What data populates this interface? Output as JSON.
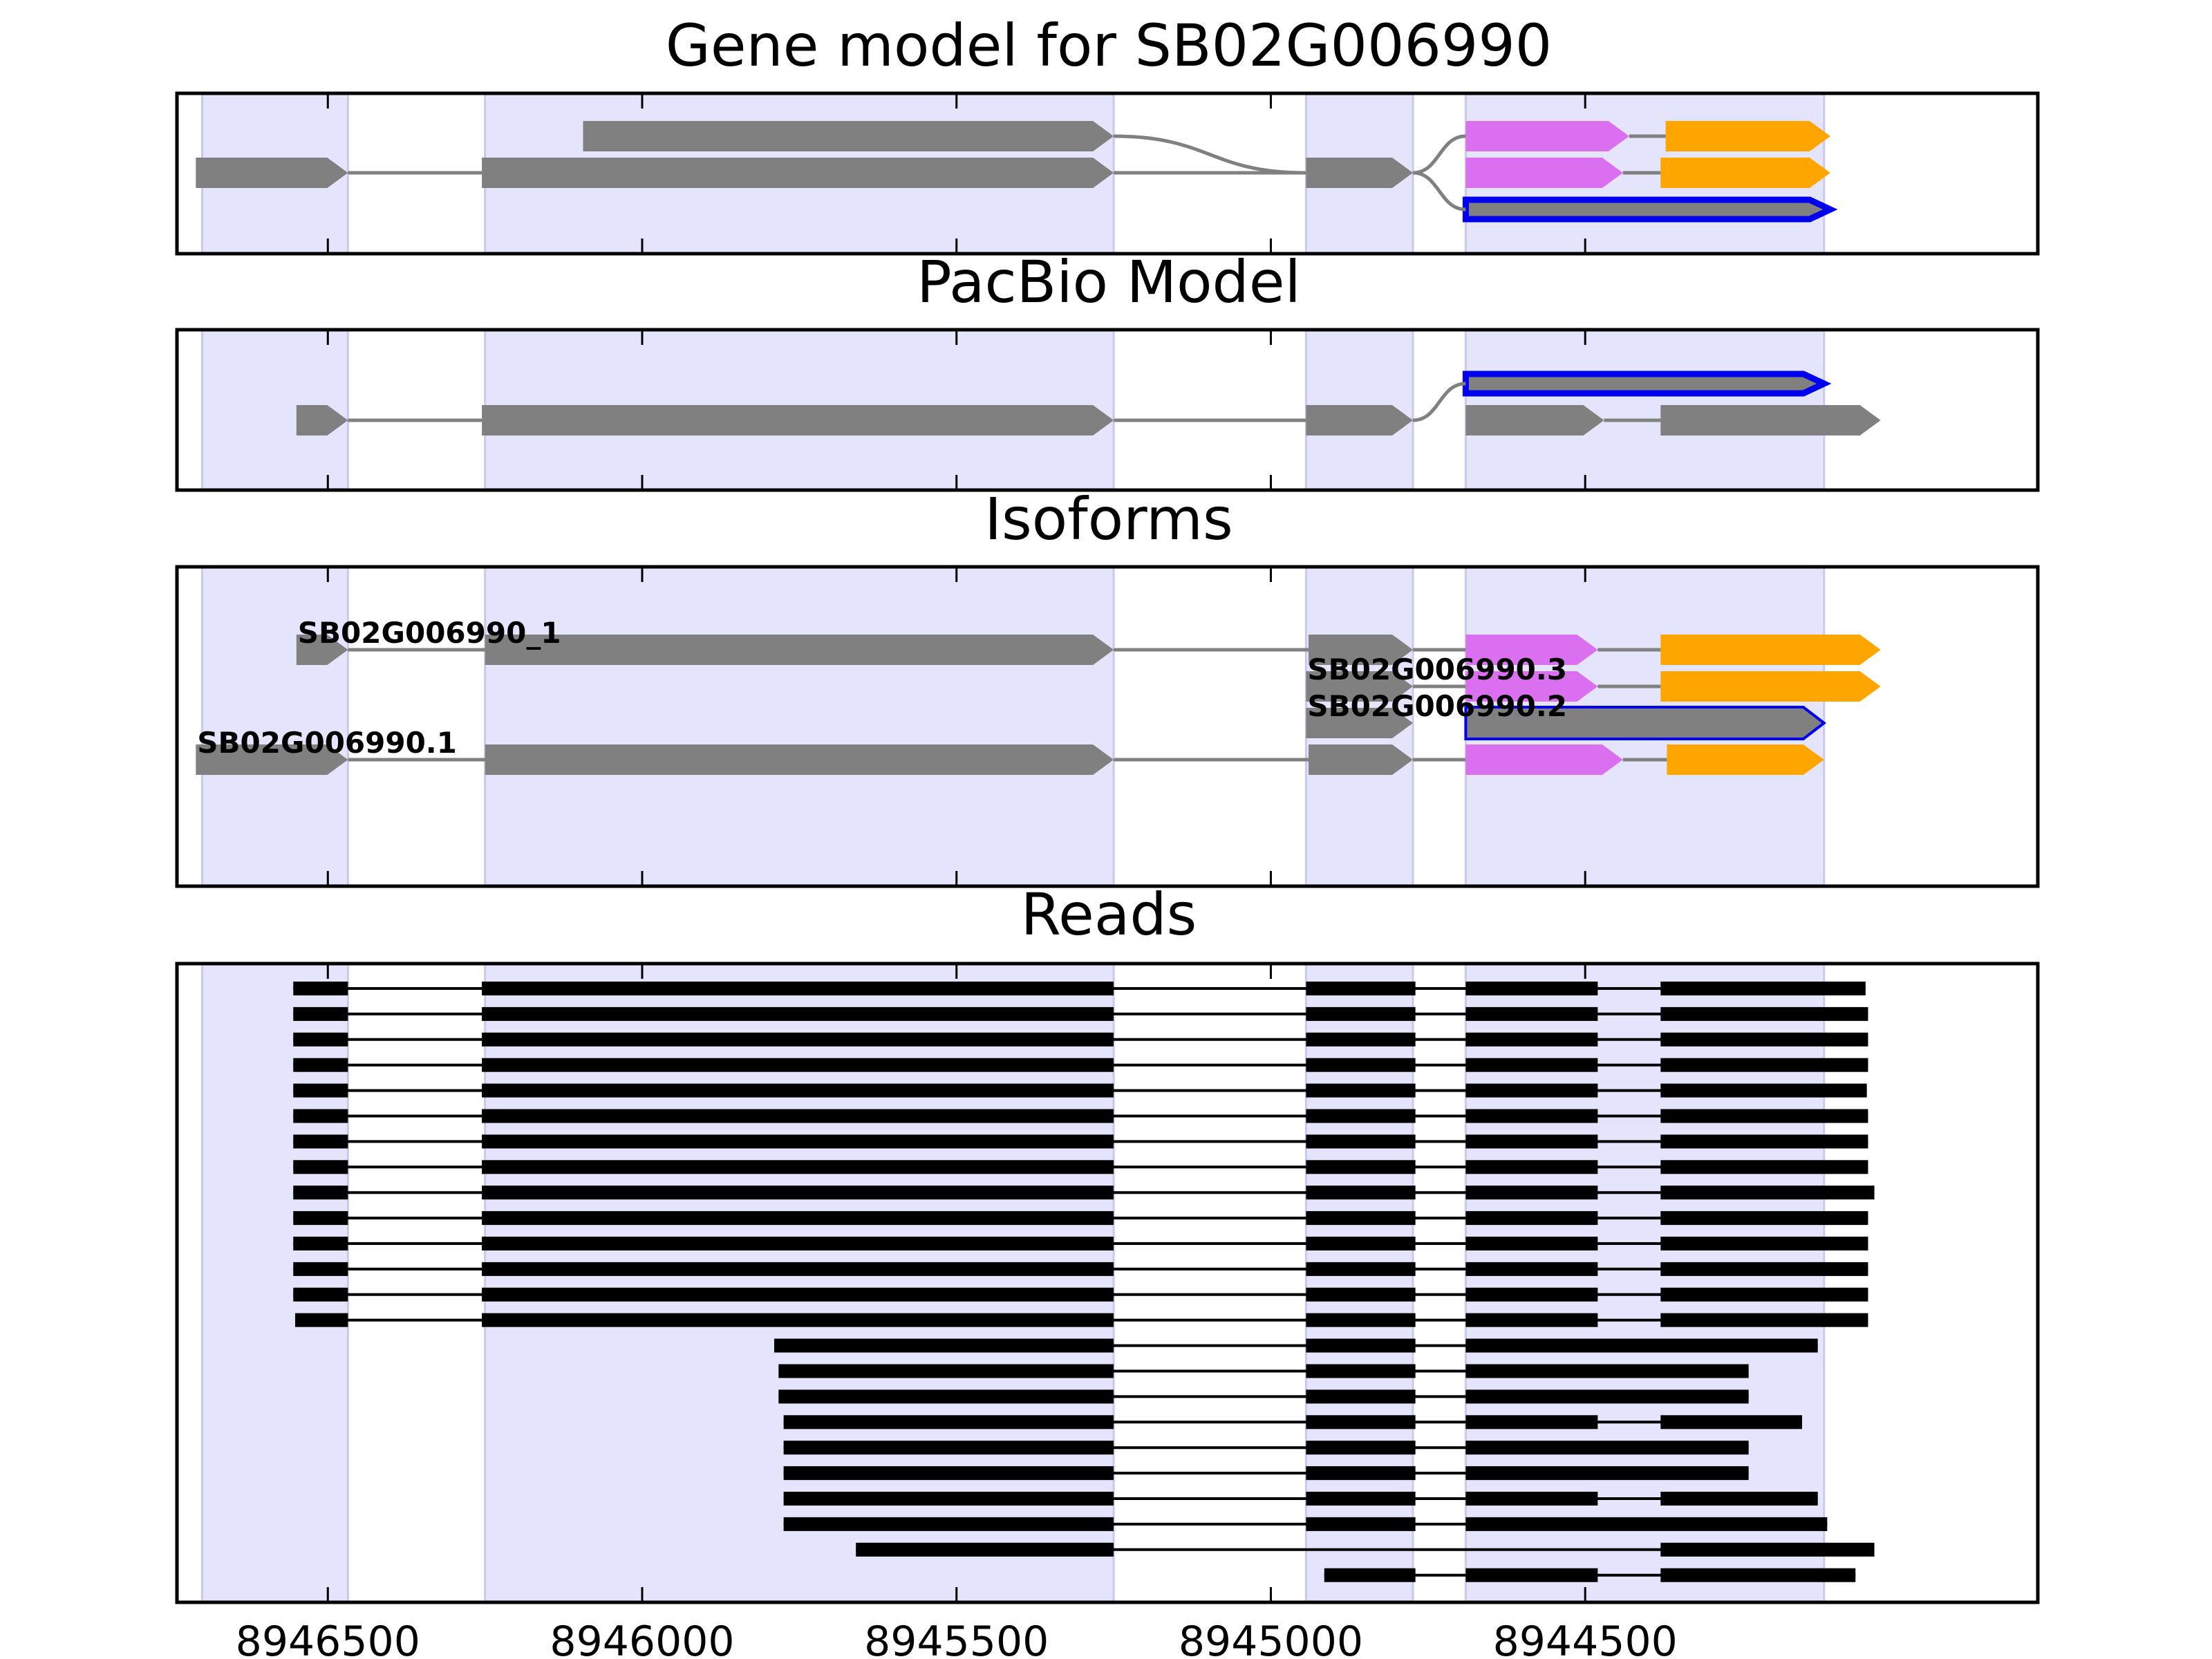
{
  "chart_data": [
    {
      "type": "gene-track",
      "title": "Gene model for SB02G006990",
      "shaded_regions": [
        [
          8946700,
          8946468
        ],
        [
          8946250,
          8945250
        ],
        [
          8944944,
          8944774
        ],
        [
          8944690,
          8944120
        ]
      ],
      "junction_curves": [
        {
          "from": [
            8945250,
            1
          ],
          "to": [
            8944944,
            2
          ]
        },
        {
          "from": [
            8944774,
            2
          ],
          "to": [
            8944690,
            1
          ]
        },
        {
          "from": [
            8944774,
            2
          ],
          "to": [
            8944690,
            3
          ]
        }
      ],
      "rows": [
        {
          "row": 1,
          "parts": [
            {
              "start": 8946094,
              "end": 8945250,
              "color": "#808080"
            },
            {
              "start": 8944690,
              "end": 8944430,
              "color": "#DA70F0"
            },
            {
              "start": 8944372,
              "end": 8944110,
              "color": "#FFA500"
            }
          ],
          "introns": [
            [
              8944430,
              8944372
            ]
          ]
        },
        {
          "row": 2,
          "parts": [
            {
              "start": 8946710,
              "end": 8946468,
              "color": "#808080"
            },
            {
              "start": 8946255,
              "end": 8945250,
              "color": "#808080"
            },
            {
              "start": 8944944,
              "end": 8944774,
              "color": "#808080"
            },
            {
              "start": 8944690,
              "end": 8944440,
              "color": "#DA70F0"
            },
            {
              "start": 8944380,
              "end": 8944110,
              "color": "#FFA500"
            }
          ],
          "introns": [
            [
              8946468,
              8946255
            ],
            [
              8945250,
              8944944
            ],
            [
              8944440,
              8944380
            ]
          ]
        },
        {
          "row": 3,
          "parts": [
            {
              "start": 8944690,
              "end": 8944110,
              "color": "#808080",
              "outline": "#0000EE",
              "thick": true
            }
          ],
          "introns": []
        }
      ]
    },
    {
      "type": "gene-track",
      "title": "PacBio Model",
      "shaded_regions": [
        [
          8946700,
          8946468
        ],
        [
          8946250,
          8945250
        ],
        [
          8944944,
          8944774
        ],
        [
          8944690,
          8944120
        ]
      ],
      "junction_curves": [
        {
          "from": [
            8944774,
            2
          ],
          "to": [
            8944690,
            1
          ]
        }
      ],
      "rows": [
        {
          "row": 1,
          "parts": [
            {
              "start": 8944690,
              "end": 8944120,
              "color": "#808080",
              "outline": "#0000EE",
              "thick": true
            }
          ],
          "introns": []
        },
        {
          "row": 2,
          "parts": [
            {
              "start": 8946550,
              "end": 8946468,
              "color": "#808080"
            },
            {
              "start": 8946255,
              "end": 8945250,
              "color": "#808080"
            },
            {
              "start": 8944944,
              "end": 8944774,
              "color": "#808080"
            },
            {
              "start": 8944690,
              "end": 8944470,
              "color": "#808080"
            },
            {
              "start": 8944380,
              "end": 8944030,
              "color": "#808080"
            }
          ],
          "introns": [
            [
              8946468,
              8946255
            ],
            [
              8945250,
              8944944
            ],
            [
              8944470,
              8944380
            ]
          ]
        }
      ]
    },
    {
      "type": "gene-track",
      "title": "Isoforms",
      "shaded_regions": [
        [
          8946700,
          8946468
        ],
        [
          8946250,
          8945250
        ],
        [
          8944944,
          8944774
        ],
        [
          8944690,
          8944120
        ]
      ],
      "junction_curves": [],
      "rows": [
        {
          "row": 1,
          "label": "SB02G006990_1",
          "label_x": 8946550,
          "parts": [
            {
              "start": 8946550,
              "end": 8946468,
              "color": "#808080"
            },
            {
              "start": 8946250,
              "end": 8945250,
              "color": "#808080"
            },
            {
              "start": 8944940,
              "end": 8944774,
              "color": "#808080"
            },
            {
              "start": 8944690,
              "end": 8944480,
              "color": "#DA70F0"
            },
            {
              "start": 8944380,
              "end": 8944030,
              "color": "#FFA500"
            }
          ],
          "introns": [
            [
              8946468,
              8946250
            ],
            [
              8945250,
              8944940
            ],
            [
              8944774,
              8944690
            ],
            [
              8944480,
              8944380
            ]
          ]
        },
        {
          "row": 2,
          "label": "SB02G006990.3",
          "label_x": 8944944,
          "parts": [
            {
              "start": 8944944,
              "end": 8944774,
              "color": "#808080"
            },
            {
              "start": 8944690,
              "end": 8944480,
              "color": "#DA70F0"
            },
            {
              "start": 8944380,
              "end": 8944030,
              "color": "#FFA500"
            }
          ],
          "introns": [
            [
              8944774,
              8944690
            ],
            [
              8944480,
              8944380
            ]
          ]
        },
        {
          "row": 3,
          "label": "SB02G006990.2",
          "label_x": 8944944,
          "parts": [
            {
              "start": 8944944,
              "end": 8944774,
              "color": "#808080"
            },
            {
              "start": 8944690,
              "end": 8944120,
              "color": "#808080",
              "outline": "#0000EE",
              "thin": true
            }
          ],
          "introns": []
        },
        {
          "row": 4,
          "label": "SB02G006990.1",
          "label_x": 8946710,
          "parts": [
            {
              "start": 8946710,
              "end": 8946468,
              "color": "#808080"
            },
            {
              "start": 8946250,
              "end": 8945250,
              "color": "#808080"
            },
            {
              "start": 8944940,
              "end": 8944774,
              "color": "#808080"
            },
            {
              "start": 8944690,
              "end": 8944440,
              "color": "#DA70F0"
            },
            {
              "start": 8944370,
              "end": 8944120,
              "color": "#FFA500"
            }
          ],
          "introns": [
            [
              8946468,
              8946250
            ],
            [
              8945250,
              8944940
            ],
            [
              8944774,
              8944690
            ],
            [
              8944440,
              8944370
            ]
          ]
        }
      ]
    },
    {
      "type": "reads",
      "title": "Reads",
      "shaded_regions": [
        [
          8946700,
          8946468
        ],
        [
          8946250,
          8945250
        ],
        [
          8944944,
          8944774
        ],
        [
          8944690,
          8944120
        ]
      ],
      "x_ticks": [
        8946500,
        8946000,
        8945500,
        8945000,
        8944500
      ],
      "xlim": [
        8946740,
        8943780
      ],
      "reads": [
        {
          "start": 8946555,
          "end": 8944054,
          "blocks": [
            [
              8946555,
              8946468
            ],
            [
              8946255,
              8945250
            ],
            [
              8944944,
              8944770
            ],
            [
              8944690,
              8944480
            ],
            [
              8944380,
              8944054
            ]
          ]
        },
        {
          "start": 8946555,
          "end": 8944050,
          "blocks": [
            [
              8946555,
              8946468
            ],
            [
              8946255,
              8945250
            ],
            [
              8944944,
              8944770
            ],
            [
              8944690,
              8944480
            ],
            [
              8944380,
              8944050
            ]
          ]
        },
        {
          "start": 8946555,
          "end": 8944050,
          "blocks": [
            [
              8946555,
              8946468
            ],
            [
              8946255,
              8945250
            ],
            [
              8944944,
              8944770
            ],
            [
              8944690,
              8944480
            ],
            [
              8944380,
              8944050
            ]
          ]
        },
        {
          "start": 8946555,
          "end": 8944050,
          "blocks": [
            [
              8946555,
              8946468
            ],
            [
              8946255,
              8945250
            ],
            [
              8944944,
              8944770
            ],
            [
              8944690,
              8944480
            ],
            [
              8944380,
              8944050
            ]
          ]
        },
        {
          "start": 8946555,
          "end": 8944052,
          "blocks": [
            [
              8946555,
              8946468
            ],
            [
              8946255,
              8945250
            ],
            [
              8944944,
              8944770
            ],
            [
              8944690,
              8944480
            ],
            [
              8944380,
              8944052
            ]
          ]
        },
        {
          "start": 8946555,
          "end": 8944050,
          "blocks": [
            [
              8946555,
              8946468
            ],
            [
              8946255,
              8945250
            ],
            [
              8944944,
              8944770
            ],
            [
              8944690,
              8944480
            ],
            [
              8944380,
              8944050
            ]
          ]
        },
        {
          "start": 8946555,
          "end": 8944050,
          "blocks": [
            [
              8946555,
              8946468
            ],
            [
              8946255,
              8945250
            ],
            [
              8944944,
              8944770
            ],
            [
              8944690,
              8944480
            ],
            [
              8944380,
              8944050
            ]
          ]
        },
        {
          "start": 8946555,
          "end": 8944050,
          "blocks": [
            [
              8946555,
              8946468
            ],
            [
              8946255,
              8945250
            ],
            [
              8944944,
              8944770
            ],
            [
              8944690,
              8944480
            ],
            [
              8944380,
              8944050
            ]
          ]
        },
        {
          "start": 8946555,
          "end": 8944040,
          "blocks": [
            [
              8946555,
              8946468
            ],
            [
              8946255,
              8945250
            ],
            [
              8944944,
              8944770
            ],
            [
              8944690,
              8944480
            ],
            [
              8944380,
              8944040
            ]
          ]
        },
        {
          "start": 8946555,
          "end": 8944050,
          "blocks": [
            [
              8946555,
              8946468
            ],
            [
              8946255,
              8945250
            ],
            [
              8944944,
              8944770
            ],
            [
              8944690,
              8944480
            ],
            [
              8944380,
              8944050
            ]
          ]
        },
        {
          "start": 8946555,
          "end": 8944050,
          "blocks": [
            [
              8946555,
              8946468
            ],
            [
              8946255,
              8945250
            ],
            [
              8944944,
              8944770
            ],
            [
              8944690,
              8944480
            ],
            [
              8944380,
              8944050
            ]
          ]
        },
        {
          "start": 8946555,
          "end": 8944050,
          "blocks": [
            [
              8946555,
              8946468
            ],
            [
              8946255,
              8945250
            ],
            [
              8944944,
              8944770
            ],
            [
              8944690,
              8944480
            ],
            [
              8944380,
              8944050
            ]
          ]
        },
        {
          "start": 8946555,
          "end": 8944050,
          "blocks": [
            [
              8946555,
              8946468
            ],
            [
              8946255,
              8945250
            ],
            [
              8944944,
              8944770
            ],
            [
              8944690,
              8944480
            ],
            [
              8944380,
              8944050
            ]
          ]
        },
        {
          "start": 8946552,
          "end": 8944050,
          "blocks": [
            [
              8946552,
              8946468
            ],
            [
              8946255,
              8945250
            ],
            [
              8944944,
              8944770
            ],
            [
              8944690,
              8944480
            ],
            [
              8944380,
              8944050
            ]
          ]
        },
        {
          "start": 8945790,
          "end": 8944130,
          "blocks": [
            [
              8945790,
              8945250
            ],
            [
              8944944,
              8944770
            ],
            [
              8944690,
              8944130
            ]
          ]
        },
        {
          "start": 8945783,
          "end": 8944240,
          "blocks": [
            [
              8945783,
              8945250
            ],
            [
              8944944,
              8944770
            ],
            [
              8944690,
              8944240
            ]
          ]
        },
        {
          "start": 8945783,
          "end": 8944240,
          "blocks": [
            [
              8945783,
              8945250
            ],
            [
              8944944,
              8944770
            ],
            [
              8944690,
              8944240
            ]
          ]
        },
        {
          "start": 8945775,
          "end": 8944155,
          "blocks": [
            [
              8945775,
              8945250
            ],
            [
              8944944,
              8944770
            ],
            [
              8944690,
              8944480
            ],
            [
              8944380,
              8944155
            ]
          ]
        },
        {
          "start": 8945775,
          "end": 8944240,
          "blocks": [
            [
              8945775,
              8945250
            ],
            [
              8944944,
              8944770
            ],
            [
              8944690,
              8944240
            ]
          ]
        },
        {
          "start": 8945775,
          "end": 8944240,
          "blocks": [
            [
              8945775,
              8945250
            ],
            [
              8944944,
              8944770
            ],
            [
              8944690,
              8944240
            ]
          ]
        },
        {
          "start": 8945775,
          "end": 8944130,
          "blocks": [
            [
              8945775,
              8945250
            ],
            [
              8944944,
              8944770
            ],
            [
              8944690,
              8944480
            ],
            [
              8944380,
              8944130
            ]
          ]
        },
        {
          "start": 8945775,
          "end": 8944115,
          "blocks": [
            [
              8945775,
              8945250
            ],
            [
              8944944,
              8944770
            ],
            [
              8944690,
              8944115
            ]
          ]
        },
        {
          "start": 8945660,
          "end": 8944040,
          "blocks": [
            [
              8945660,
              8945250
            ],
            [
              8944380,
              8944040
            ]
          ]
        },
        {
          "start": 8944915,
          "end": 8944070,
          "blocks": [
            [
              8944915,
              8944770
            ],
            [
              8944690,
              8944480
            ],
            [
              8944380,
              8944070
            ]
          ]
        }
      ]
    }
  ]
}
